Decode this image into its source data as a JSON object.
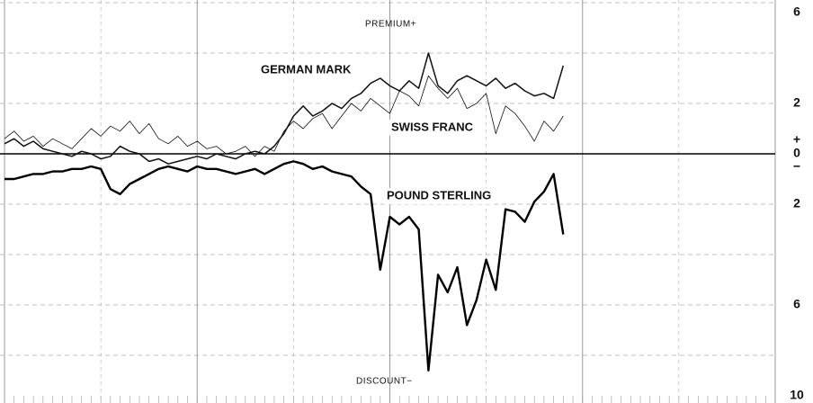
{
  "chart_data": {
    "type": "line",
    "annotations": [
      "PREMIUM+",
      "DISCOUNT−",
      "+",
      "−"
    ],
    "x": [
      0,
      2,
      4,
      6,
      8,
      10,
      12,
      14,
      16,
      18,
      20,
      22,
      24,
      26,
      28,
      30,
      32,
      34,
      36,
      38,
      40,
      42,
      44,
      46,
      48,
      50,
      52,
      54,
      56,
      58,
      60,
      62,
      64,
      66,
      68,
      70,
      72,
      74,
      76,
      78,
      80,
      82,
      84,
      86,
      88,
      90,
      92,
      94,
      96,
      98,
      100,
      102,
      104,
      106,
      108,
      110,
      112,
      114,
      116
    ],
    "xlim": [
      0,
      160
    ],
    "xticks": [
      0,
      20,
      40,
      60,
      80,
      100,
      120,
      140,
      160
    ],
    "ylim": [
      -10,
      6
    ],
    "yticks": [
      6,
      {
        "value": 4,
        "label": null
      },
      2,
      0,
      {
        "value": -2,
        "label": "2"
      },
      {
        "value": -4,
        "label": null
      },
      {
        "value": -6,
        "label": "6"
      },
      {
        "value": -8,
        "label": null
      },
      {
        "value": -10,
        "label": "10"
      }
    ],
    "grid": true,
    "series": [
      {
        "name": "GERMAN MARK",
        "color": "#111111",
        "width": 1.5,
        "values": [
          0.4,
          0.6,
          0.3,
          0.5,
          0.2,
          0.1,
          0.0,
          -0.1,
          0.1,
          0.0,
          -0.2,
          -0.1,
          0.3,
          0.1,
          0.0,
          -0.3,
          -0.2,
          -0.4,
          -0.3,
          -0.2,
          -0.1,
          -0.2,
          0.0,
          -0.1,
          -0.2,
          0.0,
          0.1,
          0.0,
          0.3,
          0.8,
          1.5,
          1.9,
          1.5,
          1.7,
          2.0,
          1.8,
          2.2,
          2.4,
          2.8,
          3.0,
          2.7,
          2.5,
          2.9,
          2.6,
          4.0,
          2.7,
          2.4,
          2.9,
          3.1,
          2.9,
          2.7,
          3.0,
          2.6,
          2.8,
          2.5,
          2.3,
          2.4,
          2.2,
          3.5
        ]
      },
      {
        "name": "SWISS FRANC",
        "color": "#111111",
        "width": 0.8,
        "values": [
          0.6,
          0.9,
          0.5,
          0.7,
          0.3,
          0.6,
          0.4,
          0.2,
          0.6,
          1.0,
          0.7,
          1.1,
          0.9,
          1.3,
          0.8,
          1.2,
          0.6,
          0.4,
          0.7,
          0.3,
          0.5,
          0.2,
          0.3,
          0.0,
          0.1,
          0.3,
          -0.1,
          0.3,
          0.1,
          0.9,
          1.3,
          1.0,
          1.4,
          1.6,
          1.0,
          1.5,
          2.0,
          1.7,
          2.2,
          1.9,
          1.6,
          2.5,
          2.3,
          1.9,
          3.1,
          2.6,
          2.2,
          2.6,
          1.8,
          2.0,
          2.4,
          0.8,
          1.9,
          1.6,
          1.1,
          0.5,
          1.3,
          0.9,
          1.5
        ]
      },
      {
        "name": "POUND STERLING",
        "color": "#000000",
        "width": 2.4,
        "values": [
          -1.0,
          -1.0,
          -0.9,
          -0.8,
          -0.8,
          -0.7,
          -0.7,
          -0.6,
          -0.6,
          -0.5,
          -0.6,
          -1.4,
          -1.6,
          -1.2,
          -1.0,
          -0.8,
          -0.6,
          -0.5,
          -0.6,
          -0.7,
          -0.5,
          -0.6,
          -0.6,
          -0.7,
          -0.8,
          -0.7,
          -0.6,
          -0.8,
          -0.6,
          -0.4,
          -0.3,
          -0.4,
          -0.6,
          -0.5,
          -0.7,
          -0.8,
          -0.9,
          -1.3,
          -1.6,
          -4.6,
          -2.5,
          -2.8,
          -2.5,
          -3.0,
          -8.6,
          -4.8,
          -5.5,
          -4.5,
          -6.8,
          -5.8,
          -4.2,
          -5.4,
          -2.2,
          -2.3,
          -2.7,
          -1.9,
          -1.5,
          -0.8,
          -3.2
        ]
      }
    ]
  }
}
